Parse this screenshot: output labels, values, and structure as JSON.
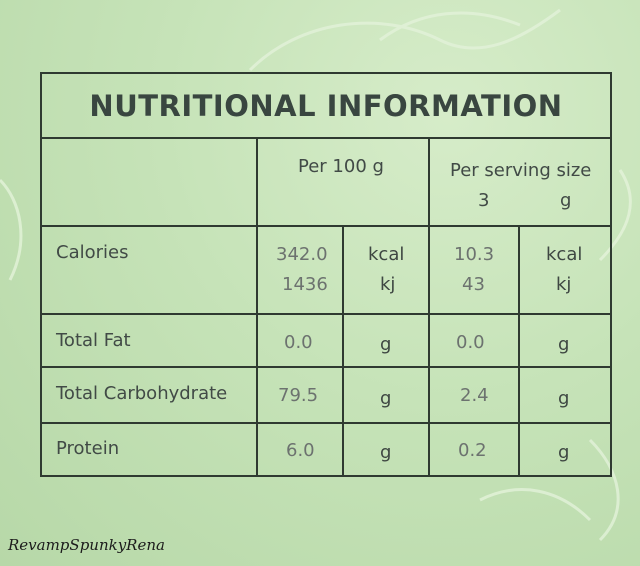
{
  "title": "NUTRITIONAL INFORMATION",
  "headers": {
    "per100": "Per 100 g",
    "serving_line1": "Per serving size",
    "serving_qty": "3",
    "serving_unit": "g"
  },
  "rows": [
    {
      "name": "Calories",
      "v100": [
        "342.0",
        "1436"
      ],
      "u100": [
        "kcal",
        "kj"
      ],
      "vs": [
        "10.3",
        "43"
      ],
      "us": [
        "kcal",
        "kj"
      ]
    },
    {
      "name": "Total Fat",
      "v100": "0.0",
      "u100": "g",
      "vs": "0.0",
      "us": "g"
    },
    {
      "name": "Total Carbohydrate",
      "v100": "79.5",
      "u100": "g",
      "vs": "2.4",
      "us": "g"
    },
    {
      "name": "Protein",
      "v100": "6.0",
      "u100": "g",
      "vs": "0.2",
      "us": "g"
    }
  ],
  "watermark": "RevampSpunkyRena",
  "colors": {
    "background": "#c6e3b8",
    "border": "#2f3a31",
    "text": "#414a46"
  }
}
